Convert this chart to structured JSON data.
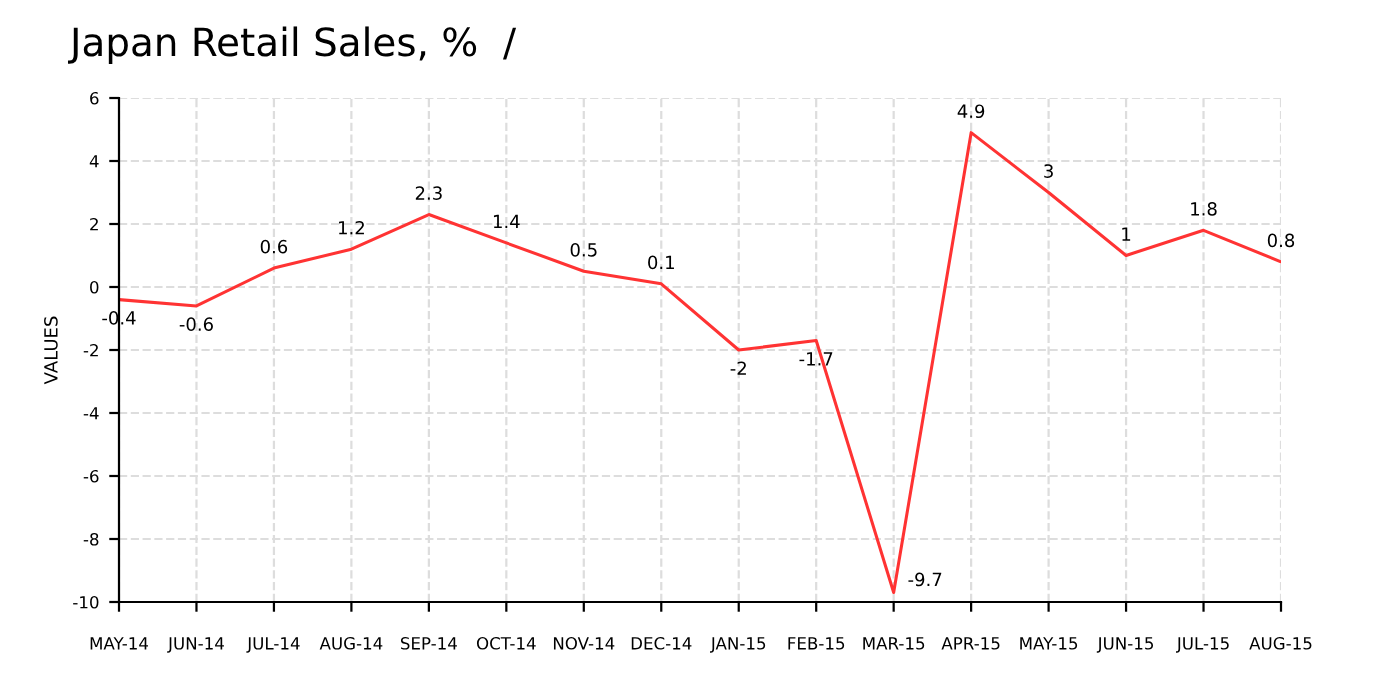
{
  "chart_data": {
    "type": "line",
    "title": "Japan Retail Sales, %  /",
    "ylabel": "VALUES",
    "categories": [
      "MAY-14",
      "JUN-14",
      "JUL-14",
      "AUG-14",
      "SEP-14",
      "OCT-14",
      "NOV-14",
      "DEC-14",
      "JAN-15",
      "FEB-15",
      "MAR-15",
      "APR-15",
      "MAY-15",
      "JUN-15",
      "JUL-15",
      "AUG-15"
    ],
    "series": [
      {
        "color": "#ff3333",
        "values": [
          -0.4,
          -0.6,
          0.6,
          1.2,
          2.3,
          1.4,
          0.5,
          0.1,
          -2,
          -1.7,
          -9.7,
          4.9,
          3,
          1,
          1.8,
          0.8
        ]
      }
    ],
    "ylim": [
      -10,
      6
    ],
    "yticks": [
      -10,
      -8,
      -6,
      -4,
      -2,
      0,
      2,
      4,
      6
    ],
    "grid": true,
    "line_style": "solid",
    "marker": "none",
    "data_labels": true
  }
}
